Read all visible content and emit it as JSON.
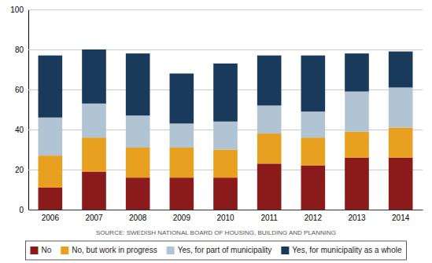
{
  "chart_data": {
    "type": "bar",
    "stacked": true,
    "categories": [
      "2006",
      "2007",
      "2008",
      "2009",
      "2010",
      "2011",
      "2012",
      "2013",
      "2014"
    ],
    "series": [
      {
        "name": "No",
        "color": "#8B1A1A",
        "values": [
          11,
          19,
          16,
          16,
          16,
          23,
          22,
          26,
          26
        ]
      },
      {
        "name": "No, but work in progress",
        "color": "#E8A020",
        "values": [
          16,
          17,
          15,
          15,
          14,
          15,
          14,
          13,
          15
        ]
      },
      {
        "name": "Yes, for part of municipality",
        "color": "#B0C4D4",
        "values": [
          19,
          17,
          16,
          12,
          14,
          14,
          13,
          20,
          20
        ]
      },
      {
        "name": "Yes, for municipality as a whole",
        "color": "#1A3A5C",
        "values": [
          31,
          27,
          31,
          25,
          29,
          25,
          28,
          19,
          18
        ]
      }
    ],
    "annotations": [
      "SOURCE: SWEDISH NATIONAL BOARD OF HOUSING, BUILDING AND PLANNING"
    ],
    "ylim": [
      0,
      100
    ],
    "yticks": [
      0,
      20,
      40,
      60,
      80,
      100
    ],
    "grid": true,
    "legend": "bottom"
  }
}
